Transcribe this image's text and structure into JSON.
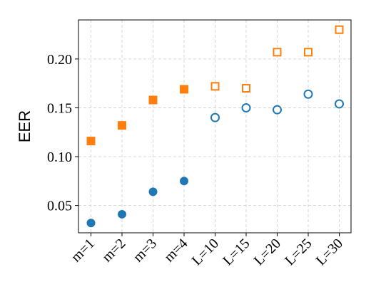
{
  "chart_data": {
    "type": "scatter",
    "title": "",
    "xlabel": "",
    "ylabel": "EER",
    "categories": [
      "m=1",
      "m=2",
      "m=3",
      "m=4",
      "L=10",
      "L=15",
      "L=20",
      "L=25",
      "L=30"
    ],
    "ylim": [
      0.022,
      0.24
    ],
    "yticks": [
      0.05,
      0.1,
      0.15,
      0.2
    ],
    "ytick_labels": [
      "0.05",
      "0.10",
      "0.15",
      "0.20"
    ],
    "grid": true,
    "legend": "none",
    "series": [
      {
        "color": "#1f77b4",
        "marker": "circle",
        "values": [
          0.032,
          0.041,
          0.064,
          0.075,
          0.14,
          0.15,
          0.148,
          0.164,
          0.154
        ],
        "filled": [
          true,
          true,
          true,
          true,
          false,
          false,
          false,
          false,
          false
        ]
      },
      {
        "color": "#ff7f0e",
        "marker": "square",
        "values": [
          0.116,
          0.132,
          0.158,
          0.169,
          0.172,
          0.17,
          0.207,
          0.207,
          0.23
        ],
        "filled": [
          true,
          true,
          true,
          true,
          false,
          false,
          false,
          false,
          false
        ]
      }
    ]
  }
}
